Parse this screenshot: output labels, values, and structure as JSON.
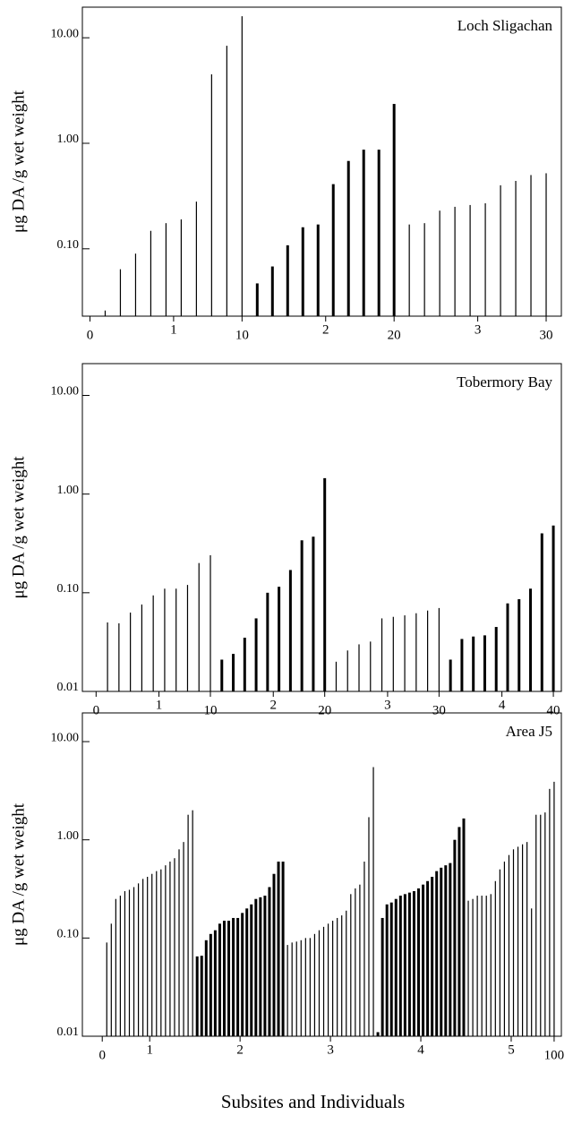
{
  "chart_data": [
    {
      "type": "bar",
      "title": "Loch Sligachan",
      "ylabel": "μg DA /g  wet weight",
      "log_y": true,
      "color": "#000000",
      "x": [
        1,
        2,
        3,
        4,
        5,
        6,
        7,
        8,
        9,
        10,
        11,
        12,
        13,
        14,
        15,
        16,
        17,
        18,
        19,
        20,
        21,
        22,
        23,
        24,
        25,
        26,
        27,
        28,
        29,
        30
      ],
      "values": [
        0.026,
        0.064,
        0.09,
        0.148,
        0.175,
        0.19,
        0.28,
        4.5,
        8.4,
        16,
        0.047,
        0.068,
        0.108,
        0.16,
        0.17,
        0.41,
        0.68,
        0.87,
        0.87,
        2.36,
        0.17,
        0.175,
        0.23,
        0.25,
        0.26,
        0.27,
        0.4,
        0.44,
        0.5,
        0.52
      ],
      "thick_ranges": [
        [
          11,
          20
        ]
      ],
      "xlim": [
        -0.5,
        31
      ],
      "ylim": [
        0.023,
        19.5
      ],
      "xticks": [
        0,
        {
          "value": 5.5,
          "label": "1"
        },
        10,
        {
          "value": 15.5,
          "label": "2"
        },
        20,
        {
          "value": 25.5,
          "label": "3"
        },
        30
      ],
      "yticks": [
        {
          "value": 0.1,
          "label": "0.10"
        },
        {
          "value": 1,
          "label": "1.00"
        },
        {
          "value": 10,
          "label": "10.00"
        }
      ]
    },
    {
      "type": "bar",
      "title": "Tobermory Bay",
      "ylabel": "μg DA /g  wet weight",
      "log_y": true,
      "color": "#000000",
      "x": [
        1,
        2,
        3,
        4,
        5,
        6,
        7,
        8,
        9,
        10,
        11,
        12,
        13,
        14,
        15,
        16,
        17,
        18,
        19,
        20,
        21,
        22,
        23,
        24,
        25,
        26,
        27,
        28,
        29,
        30,
        31,
        32,
        33,
        34,
        35,
        36,
        37,
        38,
        39,
        40
      ],
      "values": [
        0.05,
        0.049,
        0.063,
        0.076,
        0.094,
        0.11,
        0.11,
        0.12,
        0.2,
        0.24,
        0.021,
        0.024,
        0.035,
        0.055,
        0.1,
        0.115,
        0.17,
        0.34,
        0.37,
        1.45,
        0.02,
        0.026,
        0.03,
        0.032,
        0.055,
        0.057,
        0.059,
        0.062,
        0.066,
        0.07,
        0.021,
        0.034,
        0.036,
        0.037,
        0.045,
        0.078,
        0.086,
        0.11,
        0.4,
        0.48
      ],
      "thick_ranges": [
        [
          11,
          20
        ],
        [
          31,
          40
        ]
      ],
      "xlim": [
        -1.2,
        40.7
      ],
      "ylim": [
        0.01,
        21
      ],
      "xticks": [
        0,
        {
          "value": 5.5,
          "label": "1"
        },
        10,
        {
          "value": 15.5,
          "label": "2"
        },
        20,
        {
          "value": 25.5,
          "label": "3"
        },
        30,
        {
          "value": 35.5,
          "label": "4"
        },
        40
      ],
      "yticks": [
        {
          "value": 0.01,
          "label": "0.01"
        },
        {
          "value": 0.1,
          "label": "0.10"
        },
        {
          "value": 1,
          "label": "1.00"
        },
        {
          "value": 10,
          "label": "10.00"
        }
      ]
    },
    {
      "type": "bar",
      "title": "Area J5",
      "ylabel": "μg DA /g  wet weight",
      "xlabel": "Subsites and Individuals",
      "log_y": true,
      "color": "#000000",
      "x": [
        1,
        2,
        3,
        4,
        5,
        6,
        7,
        8,
        9,
        10,
        11,
        12,
        13,
        14,
        15,
        16,
        17,
        18,
        19,
        20,
        21,
        22,
        23,
        24,
        25,
        26,
        27,
        28,
        29,
        30,
        31,
        32,
        33,
        34,
        35,
        36,
        37,
        38,
        39,
        40,
        41,
        42,
        43,
        44,
        45,
        46,
        47,
        48,
        49,
        50,
        51,
        52,
        53,
        54,
        55,
        56,
        57,
        58,
        59,
        60,
        61,
        62,
        63,
        64,
        65,
        66,
        67,
        68,
        69,
        70,
        71,
        72,
        73,
        74,
        75,
        76,
        77,
        78,
        79,
        80,
        81,
        82,
        83,
        84,
        85,
        86,
        87,
        88,
        89,
        90,
        91,
        92,
        93,
        94,
        95,
        96,
        97,
        98,
        99,
        100
      ],
      "values": [
        0.09,
        0.14,
        0.25,
        0.27,
        0.3,
        0.31,
        0.33,
        0.36,
        0.4,
        0.42,
        0.45,
        0.48,
        0.5,
        0.55,
        0.6,
        0.65,
        0.8,
        0.95,
        1.8,
        2.0,
        0.065,
        0.066,
        0.095,
        0.11,
        0.12,
        0.14,
        0.15,
        0.15,
        0.16,
        0.16,
        0.18,
        0.2,
        0.22,
        0.25,
        0.26,
        0.27,
        0.33,
        0.45,
        0.6,
        0.6,
        0.085,
        0.09,
        0.092,
        0.095,
        0.1,
        0.1,
        0.11,
        0.12,
        0.13,
        0.14,
        0.15,
        0.16,
        0.17,
        0.19,
        0.28,
        0.32,
        0.35,
        0.6,
        1.7,
        5.5,
        0.011,
        0.16,
        0.22,
        0.23,
        0.25,
        0.27,
        0.28,
        0.29,
        0.3,
        0.32,
        0.35,
        0.38,
        0.42,
        0.48,
        0.52,
        0.55,
        0.58,
        1.0,
        1.35,
        1.65,
        0.24,
        0.25,
        0.27,
        0.27,
        0.27,
        0.28,
        0.38,
        0.5,
        0.6,
        0.7,
        0.8,
        0.85,
        0.9,
        0.95,
        0.2,
        1.8,
        1.8,
        1.9,
        3.3,
        3.9
      ],
      "thick_ranges": [
        [
          21,
          40
        ],
        [
          61,
          80
        ]
      ],
      "xlim": [
        -4.4,
        101.6
      ],
      "ylim": [
        0.01,
        19.6
      ],
      "xticks": [
        0,
        {
          "value": 10.5,
          "label": "1"
        },
        {
          "value": 30.5,
          "label": "2"
        },
        {
          "value": 50.5,
          "label": "3"
        },
        {
          "value": 70.5,
          "label": "4"
        },
        {
          "value": 90.5,
          "label": "5"
        },
        100
      ],
      "yticks": [
        {
          "value": 0.01,
          "label": "0.01"
        },
        {
          "value": 0.1,
          "label": "0.10"
        },
        {
          "value": 1,
          "label": "1.00"
        },
        {
          "value": 10,
          "label": "10.00"
        }
      ]
    }
  ]
}
